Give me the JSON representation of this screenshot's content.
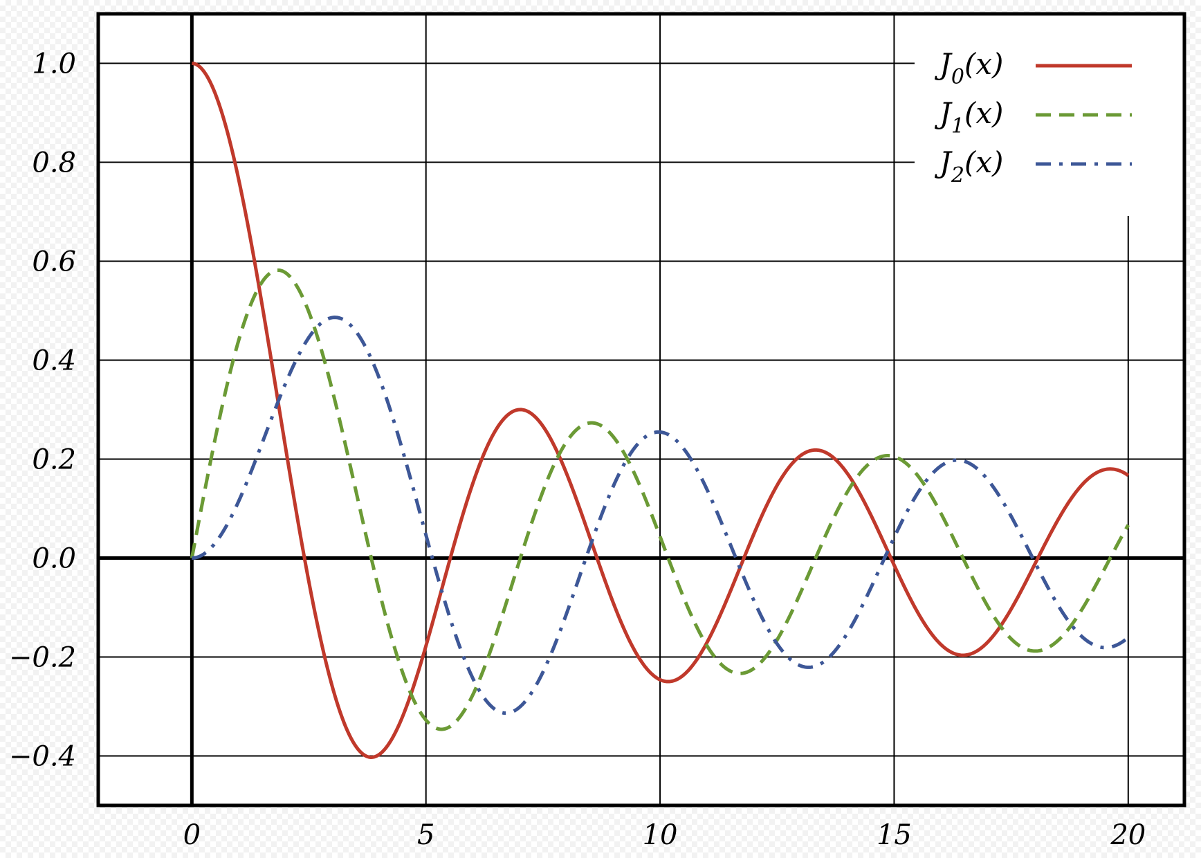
{
  "chart_data": {
    "type": "line",
    "title": "",
    "xlabel": "",
    "ylabel": "",
    "xlim": [
      -2,
      21.2
    ],
    "ylim": [
      -0.5,
      1.1
    ],
    "grid": true,
    "legend_position": "top-right",
    "x_ticks": [
      0,
      5,
      10,
      15,
      20
    ],
    "x_tick_labels": [
      "0",
      "5",
      "10",
      "15",
      "20"
    ],
    "y_ticks": [
      1.0,
      0.8,
      0.6,
      0.4,
      0.2,
      0.0,
      -0.2,
      -0.4
    ],
    "y_tick_labels": [
      "1.0",
      "0.8",
      "0.6",
      "0.4",
      "0.2",
      "0.0",
      "−0.2",
      "−0.4"
    ],
    "x_range": [
      0,
      20
    ],
    "series": [
      {
        "name": "J0(x)",
        "legend_base": "J",
        "legend_sub": "0",
        "legend_arg": "(x)",
        "color": "#c0392b",
        "style": "solid",
        "order": 0
      },
      {
        "name": "J1(x)",
        "legend_base": "J",
        "legend_sub": "1",
        "legend_arg": "(x)",
        "color": "#6b9a35",
        "style": "dashed",
        "order": 1
      },
      {
        "name": "J2(x)",
        "legend_base": "J",
        "legend_sub": "2",
        "legend_arg": "(x)",
        "color": "#3d5797",
        "style": "dash-dot",
        "order": 2
      }
    ]
  }
}
